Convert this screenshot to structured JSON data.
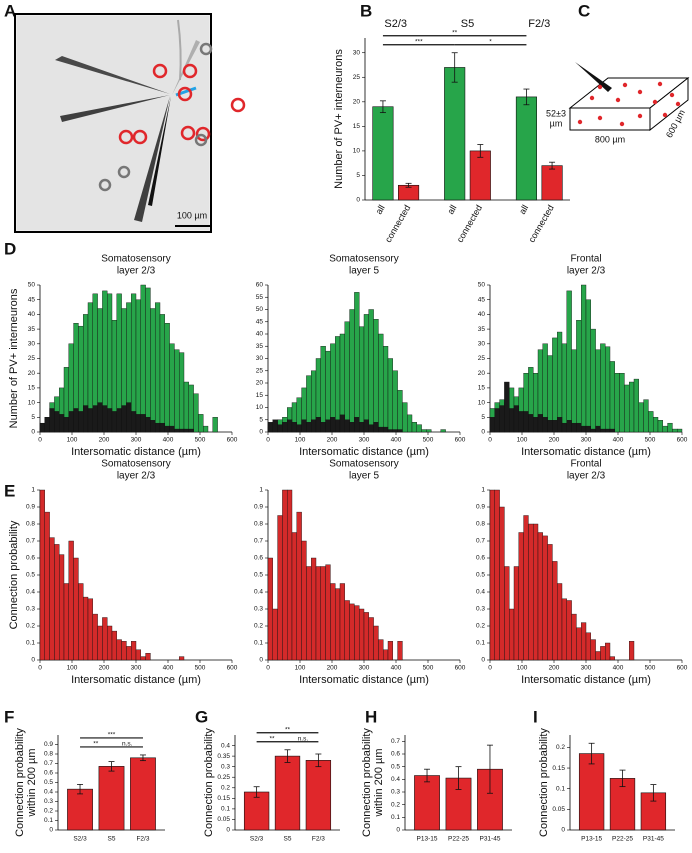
{
  "image_panel": {
    "label": "A",
    "scale_bar": "100 µm"
  },
  "diagram_panel": {
    "label": "C",
    "depth": [
      "52±3",
      "µm"
    ],
    "width": "800 µm",
    "length": "600 µm"
  },
  "chart_data": [
    {
      "panel": "B",
      "type": "bar",
      "ylabel": [
        "Number of PV+ interneurons"
      ],
      "groups": [
        "S2/3",
        "S5",
        "F2/3"
      ],
      "categories": [
        "all",
        "connected",
        "all",
        "connected",
        "all",
        "connected"
      ],
      "values": [
        19,
        3,
        27,
        10,
        21,
        7
      ],
      "errors": [
        1.2,
        0.4,
        3,
        1.3,
        1.6,
        0.7
      ],
      "colors": [
        "#27a54a",
        "#e0272b",
        "#27a54a",
        "#e0272b",
        "#27a54a",
        "#e0272b"
      ],
      "ylim": [
        0,
        33
      ],
      "yticks": [
        0,
        5,
        10,
        15,
        20,
        25,
        30
      ],
      "annotations": [
        "***",
        "*",
        "**"
      ]
    },
    {
      "panel": "D",
      "type": "histogram",
      "title": [
        "Somatosensory",
        "layer 2/3"
      ],
      "ylabel": [
        "Number of PV+ interneurons"
      ],
      "xlabel": "Intersomatic distance (µm)",
      "bins": [
        0,
        15,
        30,
        45,
        60,
        75,
        90,
        105,
        120,
        135,
        150,
        165,
        180,
        195,
        210,
        225,
        240,
        255,
        270,
        285,
        300,
        315,
        330,
        345,
        360,
        375,
        390,
        405,
        420,
        435,
        450,
        465,
        480,
        495,
        510,
        525,
        540,
        555,
        570,
        585,
        600
      ],
      "series": [
        {
          "color": "#27a54a",
          "values": [
            3,
            5,
            10,
            12,
            15,
            22,
            30,
            37,
            36,
            40,
            44,
            47,
            42,
            48,
            47,
            38,
            47,
            42,
            44,
            47,
            45,
            50,
            49,
            42,
            44,
            40,
            37,
            30,
            28,
            27,
            17,
            16,
            13,
            6,
            2,
            0,
            5,
            0,
            0,
            0
          ]
        },
        {
          "color": "#1a1a1a",
          "values": [
            3,
            5,
            8,
            7,
            6,
            5,
            7,
            8,
            7,
            9,
            8,
            9,
            10,
            9,
            8,
            7,
            8,
            9,
            10,
            7,
            6,
            6,
            5,
            4,
            3,
            3,
            2,
            2,
            1,
            1,
            1,
            1,
            0,
            0,
            0,
            0,
            0,
            0,
            0,
            0
          ]
        }
      ],
      "xlim": [
        0,
        600
      ],
      "xticks": [
        0,
        100,
        200,
        300,
        400,
        500,
        600
      ],
      "ylim": [
        0,
        50
      ],
      "yticks": [
        0,
        5,
        10,
        15,
        20,
        25,
        30,
        35,
        40,
        45,
        50
      ]
    },
    {
      "type": "histogram",
      "title": [
        "Somatosensory",
        "layer 5"
      ],
      "xlabel": "Intersomatic distance (µm)",
      "bins": [
        0,
        15,
        30,
        45,
        60,
        75,
        90,
        105,
        120,
        135,
        150,
        165,
        180,
        195,
        210,
        225,
        240,
        255,
        270,
        285,
        300,
        315,
        330,
        345,
        360,
        375,
        390,
        405,
        420,
        435,
        450,
        465,
        480,
        495,
        510,
        525,
        540,
        555,
        570,
        585,
        600
      ],
      "series": [
        {
          "color": "#27a54a",
          "values": [
            2,
            4,
            5,
            6,
            10,
            12,
            14,
            18,
            23,
            25,
            30,
            35,
            33,
            36,
            39,
            40,
            45,
            50,
            57,
            43,
            48,
            50,
            46,
            40,
            35,
            30,
            25,
            17,
            12,
            7,
            4,
            3,
            1,
            1,
            0,
            0,
            1,
            0,
            0,
            0
          ]
        },
        {
          "color": "#1a1a1a",
          "values": [
            4,
            5,
            3,
            4,
            5,
            4,
            3,
            5,
            4,
            5,
            6,
            4,
            5,
            6,
            5,
            7,
            5,
            4,
            6,
            4,
            5,
            3,
            4,
            2,
            2,
            1,
            1,
            1,
            0,
            0,
            0,
            0,
            0,
            0,
            0,
            0,
            0,
            0,
            0,
            0
          ]
        }
      ],
      "xlim": [
        0,
        600
      ],
      "xticks": [
        0,
        100,
        200,
        300,
        400,
        500,
        600
      ],
      "ylim": [
        0,
        60
      ],
      "yticks": [
        0,
        5,
        10,
        15,
        20,
        25,
        30,
        35,
        40,
        45,
        50,
        55,
        60
      ]
    },
    {
      "type": "histogram",
      "title": [
        "Frontal",
        "layer 2/3"
      ],
      "xlabel": "Intersomatic distance (µm)",
      "bins": [
        0,
        15,
        30,
        45,
        60,
        75,
        90,
        105,
        120,
        135,
        150,
        165,
        180,
        195,
        210,
        225,
        240,
        255,
        270,
        285,
        300,
        315,
        330,
        345,
        360,
        375,
        390,
        405,
        420,
        435,
        450,
        465,
        480,
        495,
        510,
        525,
        540,
        555,
        570,
        585,
        600
      ],
      "series": [
        {
          "color": "#27a54a",
          "values": [
            8,
            10,
            11,
            10,
            15,
            12,
            15,
            20,
            22,
            20,
            28,
            30,
            26,
            32,
            34,
            30,
            48,
            28,
            38,
            50,
            45,
            35,
            28,
            30,
            29,
            24,
            20,
            20,
            16,
            17,
            18,
            10,
            11,
            7,
            5,
            4,
            2,
            3,
            1,
            1
          ]
        },
        {
          "color": "#1a1a1a",
          "values": [
            5,
            8,
            9,
            17,
            8,
            9,
            7,
            7,
            6,
            5,
            6,
            5,
            4,
            4,
            5,
            3,
            4,
            3,
            3,
            2,
            2,
            1,
            2,
            1,
            1,
            1,
            0,
            0,
            0,
            0,
            0,
            0,
            0,
            0,
            0,
            0,
            0,
            0,
            0,
            0
          ]
        }
      ],
      "xlim": [
        0,
        600
      ],
      "xticks": [
        0,
        100,
        200,
        300,
        400,
        500,
        600
      ],
      "ylim": [
        0,
        50
      ],
      "yticks": [
        0,
        5,
        10,
        15,
        20,
        25,
        30,
        35,
        40,
        45,
        50
      ]
    },
    {
      "panel": "E",
      "type": "histogram",
      "title": [
        "Somatosensory",
        "layer 2/3"
      ],
      "ylabel": [
        "Connection probability"
      ],
      "xlabel": "Intersomatic distance (µm)",
      "bins": [
        0,
        15,
        30,
        45,
        60,
        75,
        90,
        105,
        120,
        135,
        150,
        165,
        180,
        195,
        210,
        225,
        240,
        255,
        270,
        285,
        300,
        315,
        330,
        345,
        360,
        375,
        390,
        405,
        420,
        435,
        450,
        465,
        480,
        495,
        510,
        525,
        540,
        555,
        570,
        585,
        600
      ],
      "series": [
        {
          "color": "#d42a2a",
          "values": [
            1,
            0.87,
            0.72,
            0.68,
            0.62,
            0.45,
            0.7,
            0.6,
            0.45,
            0.37,
            0.36,
            0.27,
            0.2,
            0.25,
            0.2,
            0.17,
            0.12,
            0.11,
            0.08,
            0.11,
            0.06,
            0.02,
            0.04,
            0,
            0,
            0,
            0,
            0,
            0,
            0.02,
            0,
            0,
            0,
            0,
            0,
            0,
            0,
            0,
            0,
            0
          ]
        }
      ],
      "xlim": [
        0,
        600
      ],
      "xticks": [
        0,
        100,
        200,
        300,
        400,
        500,
        600
      ],
      "ylim": [
        0,
        1
      ],
      "yticks": [
        0,
        0.1,
        0.2,
        0.3,
        0.4,
        0.5,
        0.6,
        0.7,
        0.8,
        0.9,
        1
      ]
    },
    {
      "type": "histogram",
      "title": [
        "Somatosensory",
        "layer 5"
      ],
      "xlabel": "Intersomatic distance (µm)",
      "bins": [
        0,
        15,
        30,
        45,
        60,
        75,
        90,
        105,
        120,
        135,
        150,
        165,
        180,
        195,
        210,
        225,
        240,
        255,
        270,
        285,
        300,
        315,
        330,
        345,
        360,
        375,
        390,
        405,
        420,
        435,
        450,
        465,
        480,
        495,
        510,
        525,
        540,
        555,
        570,
        585,
        600
      ],
      "series": [
        {
          "color": "#d42a2a",
          "values": [
            0.6,
            0.3,
            0.85,
            1,
            1,
            0.75,
            0.87,
            0.7,
            0.55,
            0.6,
            0.55,
            0.55,
            0.56,
            0.45,
            0.42,
            0.45,
            0.35,
            0.33,
            0.32,
            0.3,
            0.28,
            0.25,
            0.2,
            0.12,
            0.06,
            0.11,
            0,
            0.11,
            0,
            0,
            0,
            0,
            0,
            0,
            0,
            0,
            0,
            0,
            0,
            0
          ]
        }
      ],
      "xlim": [
        0,
        600
      ],
      "xticks": [
        0,
        100,
        200,
        300,
        400,
        500,
        600
      ],
      "ylim": [
        0,
        1
      ],
      "yticks": [
        0,
        0.1,
        0.2,
        0.3,
        0.4,
        0.5,
        0.6,
        0.7,
        0.8,
        0.9,
        1
      ]
    },
    {
      "type": "histogram",
      "title": [
        "Frontal",
        "layer 2/3"
      ],
      "xlabel": "Intersomatic distance (µm)",
      "bins": [
        0,
        15,
        30,
        45,
        60,
        75,
        90,
        105,
        120,
        135,
        150,
        165,
        180,
        195,
        210,
        225,
        240,
        255,
        270,
        285,
        300,
        315,
        330,
        345,
        360,
        375,
        390,
        405,
        420,
        435,
        450,
        465,
        480,
        495,
        510,
        525,
        540,
        555,
        570,
        585,
        600
      ],
      "series": [
        {
          "color": "#d42a2a",
          "values": [
            1,
            1,
            0.9,
            0.55,
            0.3,
            0.55,
            0.75,
            0.85,
            0.8,
            0.8,
            0.75,
            0.73,
            0.68,
            0.58,
            0.45,
            0.36,
            0.35,
            0.27,
            0.19,
            0.22,
            0.16,
            0.12,
            0.05,
            0.08,
            0.1,
            0.02,
            0,
            0,
            0,
            0.11,
            0,
            0,
            0,
            0,
            0,
            0,
            0,
            0,
            0,
            0
          ]
        }
      ],
      "xlim": [
        0,
        600
      ],
      "xticks": [
        0,
        100,
        200,
        300,
        400,
        500,
        600
      ],
      "ylim": [
        0,
        1
      ],
      "yticks": [
        0,
        0.1,
        0.2,
        0.3,
        0.4,
        0.5,
        0.6,
        0.7,
        0.8,
        0.9,
        1
      ]
    },
    {
      "panel": "F",
      "type": "bar",
      "ylabel": [
        "Connection probability",
        "within 200 µm"
      ],
      "categories": [
        "S2/3",
        "S5",
        "F2/3"
      ],
      "values": [
        0.43,
        0.67,
        0.76
      ],
      "errors": [
        0.05,
        0.05,
        0.03
      ],
      "colors": [
        "#e0272b",
        "#e0272b",
        "#e0272b"
      ],
      "ylim": [
        0,
        1
      ],
      "yticks": [
        0,
        0.1,
        0.2,
        0.3,
        0.4,
        0.5,
        0.6,
        0.7,
        0.8,
        0.9
      ],
      "annotations": [
        "**",
        "n.s.",
        "***"
      ]
    },
    {
      "panel": "G",
      "type": "bar",
      "ylabel": [
        "Connection probability"
      ],
      "categories": [
        "S2/3",
        "S5",
        "F2/3"
      ],
      "values": [
        0.18,
        0.35,
        0.33
      ],
      "errors": [
        0.025,
        0.03,
        0.03
      ],
      "colors": [
        "#e0272b",
        "#e0272b",
        "#e0272b"
      ],
      "ylim": [
        0,
        0.45
      ],
      "yticks": [
        0,
        0.05,
        0.1,
        0.15,
        0.2,
        0.25,
        0.3,
        0.35,
        0.4
      ],
      "annotations": [
        "**",
        "n.s.",
        "**"
      ]
    },
    {
      "panel": "H",
      "type": "bar",
      "ylabel": [
        "Connection probability",
        "within 200 µm"
      ],
      "categories": [
        "P13-15",
        "P22-25",
        "P31-45"
      ],
      "values": [
        0.43,
        0.41,
        0.48
      ],
      "errors": [
        0.05,
        0.09,
        0.19
      ],
      "colors": [
        "#e0272b",
        "#e0272b",
        "#e0272b"
      ],
      "ylim": [
        0,
        0.75
      ],
      "yticks": [
        0,
        0.1,
        0.2,
        0.3,
        0.4,
        0.5,
        0.6,
        0.7
      ]
    },
    {
      "panel": "I",
      "type": "bar",
      "ylabel": [
        "Connection probability"
      ],
      "categories": [
        "P13-15",
        "P22-25",
        "P31-45"
      ],
      "values": [
        0.185,
        0.125,
        0.09
      ],
      "errors": [
        0.025,
        0.02,
        0.02
      ],
      "colors": [
        "#e0272b",
        "#e0272b",
        "#e0272b"
      ],
      "ylim": [
        0,
        0.23
      ],
      "yticks": [
        0,
        0.05,
        0.1,
        0.15,
        0.2
      ]
    }
  ]
}
